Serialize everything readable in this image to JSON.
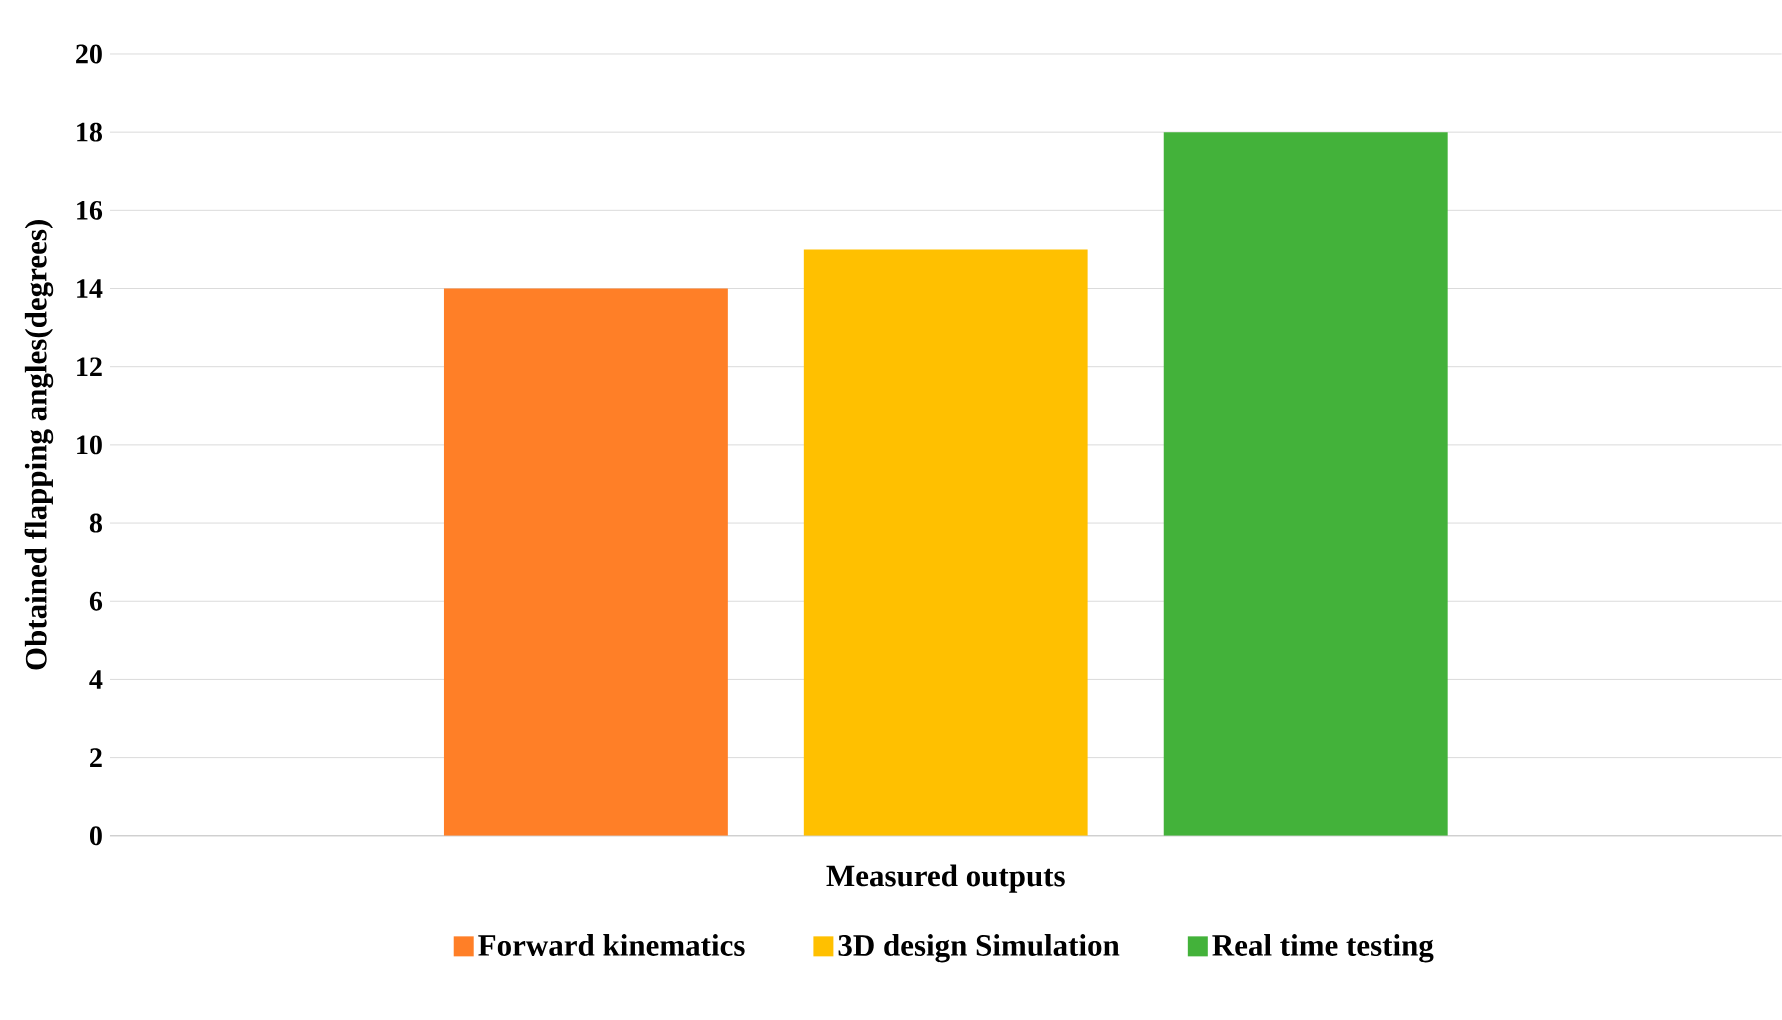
{
  "chart_data": {
    "type": "bar",
    "xlabel": "Measured outputs",
    "ylabel": "Obtained flapping angles(degrees)",
    "categories": [
      null
    ],
    "series": [
      {
        "name": "Forward kinematics",
        "color": "#ff7f27",
        "values": [
          14
        ]
      },
      {
        "name": "3D design Simulation",
        "color": "#ffc000",
        "values": [
          15
        ]
      },
      {
        "name": "Real time testing",
        "color": "#43b23a",
        "values": [
          18
        ]
      }
    ],
    "ylim": [
      0,
      20
    ],
    "yticks": [
      0,
      2,
      4,
      6,
      8,
      10,
      12,
      14,
      16,
      18,
      20
    ],
    "grid": "y",
    "legend": "bottom"
  }
}
